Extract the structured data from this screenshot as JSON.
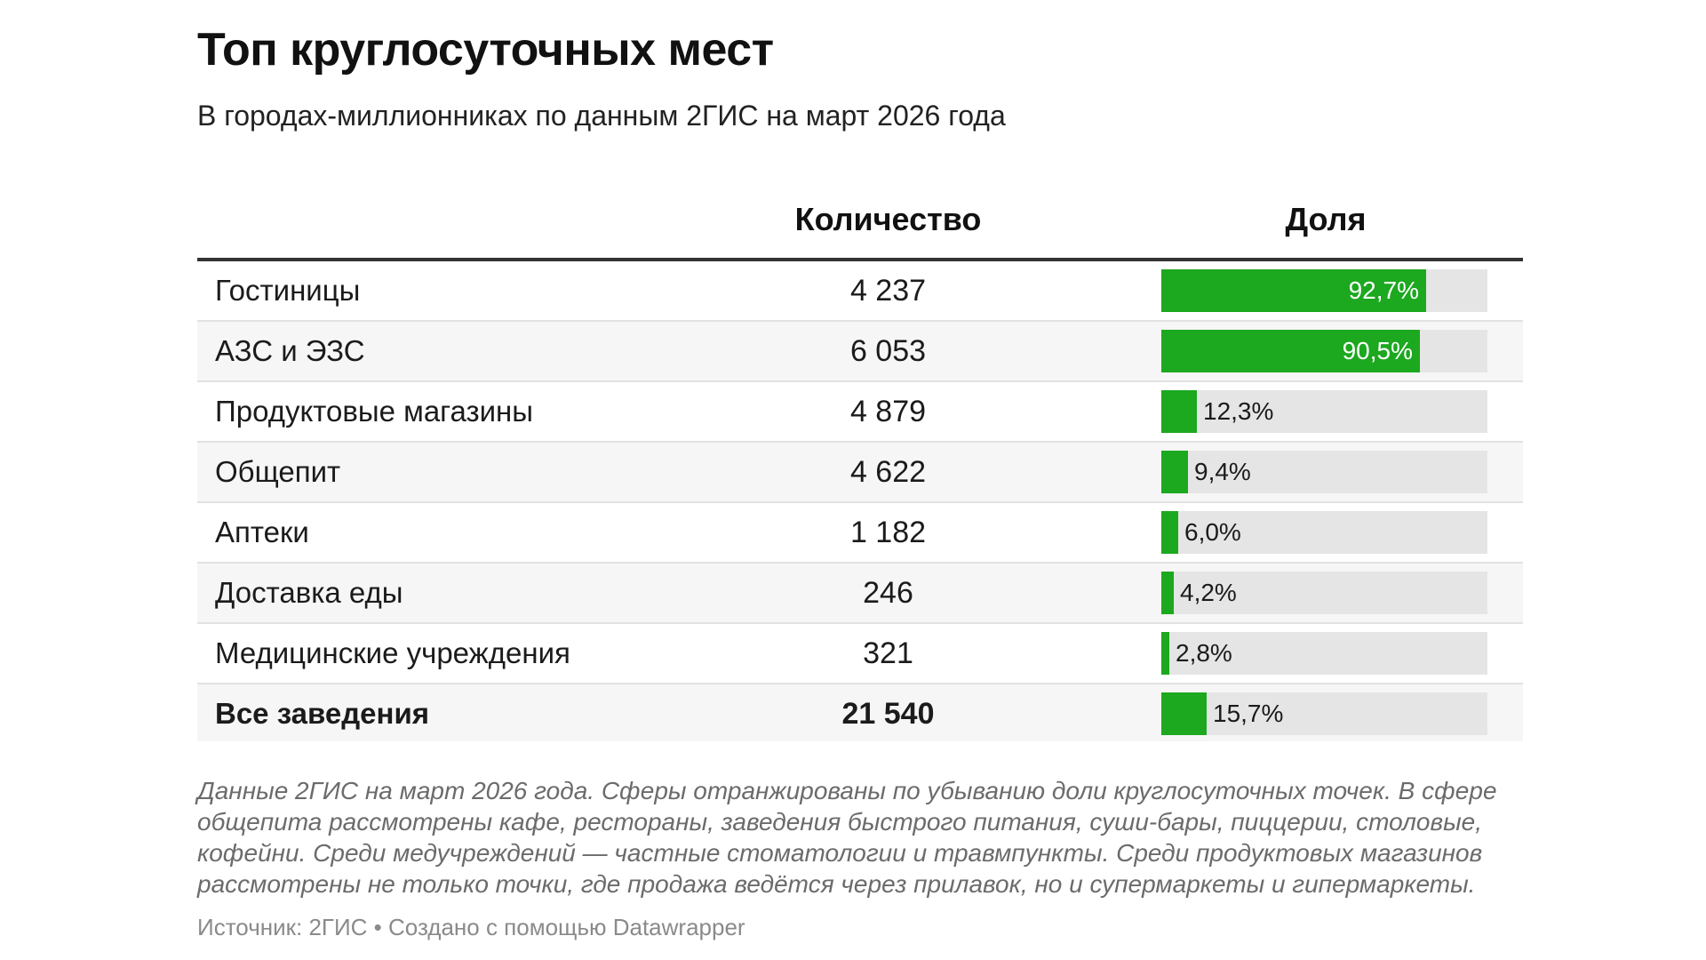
{
  "header": {
    "title": "Топ круглосуточных мест",
    "subtitle": "В городах-миллионниках по данным 2ГИС на март 2026 года"
  },
  "columns": {
    "category": "",
    "count": "Количество",
    "share": "Доля"
  },
  "colors": {
    "bar": "#1ca81f",
    "track": "#e5e5e5"
  },
  "chart_data": {
    "type": "table",
    "title": "Топ круглосуточных мест",
    "subtitle": "В городах-миллионниках по данным 2ГИС на март 2026 года",
    "columns": [
      "",
      "Количество",
      "Доля"
    ],
    "share_max": 100,
    "rows": [
      {
        "category": "Гостиницы",
        "count": "4 237",
        "share": 92.7,
        "share_label": "92,7%"
      },
      {
        "category": "АЗС и ЭЗС",
        "count": "6 053",
        "share": 90.5,
        "share_label": "90,5%"
      },
      {
        "category": "Продуктовые магазины",
        "count": "4 879",
        "share": 12.3,
        "share_label": "12,3%"
      },
      {
        "category": "Общепит",
        "count": "4 622",
        "share": 9.4,
        "share_label": "9,4%"
      },
      {
        "category": "Аптеки",
        "count": "1 182",
        "share": 6.0,
        "share_label": "6,0%"
      },
      {
        "category": "Доставка еды",
        "count": "246",
        "share": 4.2,
        "share_label": "4,2%"
      },
      {
        "category": "Медицинские учреждения",
        "count": "321",
        "share": 2.8,
        "share_label": "2,8%"
      },
      {
        "category": "Все заведения",
        "count": "21 540",
        "share": 15.7,
        "share_label": "15,7%",
        "total": true
      }
    ]
  },
  "footer": {
    "notes": "Данные 2ГИС на март 2026 года. Сферы отранжированы по убыванию доли круглосуточных точек. В сфере общепита рассмотрены кафе, рестораны, заведения быстрого питания, суши-бары, пиццерии, столовые, кофейни. Среди медучреждений — частные стоматологии и травмпункты. Среди продуктовых магазинов рассмотрены не только точки, где продажа ведётся через прилавок, но и супермаркеты и гипермаркеты.",
    "source": "Источник: 2ГИС • Создано с помощью Datawrapper"
  }
}
